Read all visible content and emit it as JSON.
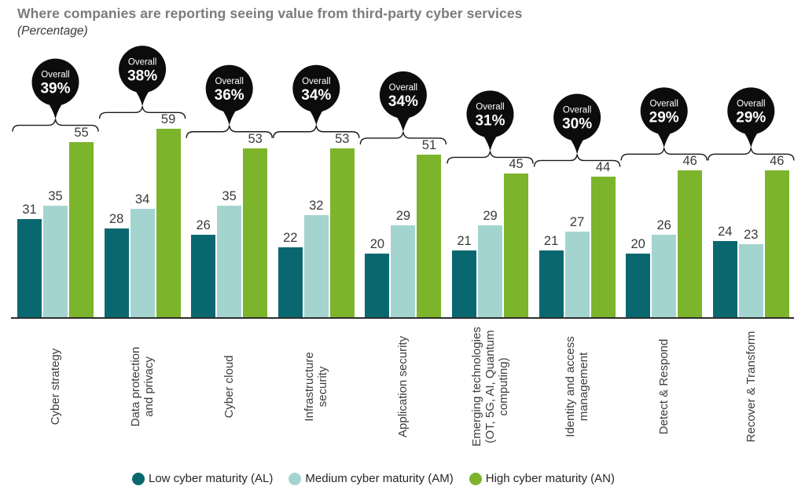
{
  "chart_data": {
    "type": "bar",
    "title": "Where companies are reporting seeing value from third-party cyber services",
    "subtitle": "(Percentage)",
    "categories": [
      [
        "Cyber strategy"
      ],
      [
        "Data protection",
        "and privacy"
      ],
      [
        "Cyber cloud"
      ],
      [
        "Infrastructure",
        "security"
      ],
      [
        "Application security"
      ],
      [
        "Emerging technologies",
        "(OT, 5G, AI, Quantum",
        "computing)"
      ],
      [
        "Identity and access",
        "management"
      ],
      [
        "Detect & Respond"
      ],
      [
        "Recover & Transform"
      ]
    ],
    "series": [
      {
        "name": "Low cyber maturity (AL)",
        "color": "#09686f",
        "values": [
          31,
          28,
          26,
          22,
          20,
          21,
          21,
          20,
          24
        ]
      },
      {
        "name": "Medium cyber maturity (AM)",
        "color": "#a4d4d0",
        "values": [
          35,
          34,
          35,
          32,
          29,
          29,
          27,
          26,
          23
        ]
      },
      {
        "name": "High cyber maturity (AN)",
        "color": "#7cb42c",
        "values": [
          55,
          59,
          53,
          53,
          51,
          45,
          44,
          46,
          46
        ]
      }
    ],
    "overall": {
      "label": "Overall",
      "values": [
        "39%",
        "38%",
        "36%",
        "34%",
        "34%",
        "31%",
        "30%",
        "29%",
        "29%"
      ]
    },
    "ylim": [
      0,
      62
    ],
    "grid": false,
    "legend_position": "bottom",
    "colors": {
      "balloon": "#0c0c0c",
      "balloon_text": "#ffffff",
      "brace": "#1a1a1a",
      "value_label": "#3a3a3a",
      "axis": "#2e2e2e",
      "title": "#7b7b7b",
      "subtitle": "#3a3a3a"
    }
  }
}
